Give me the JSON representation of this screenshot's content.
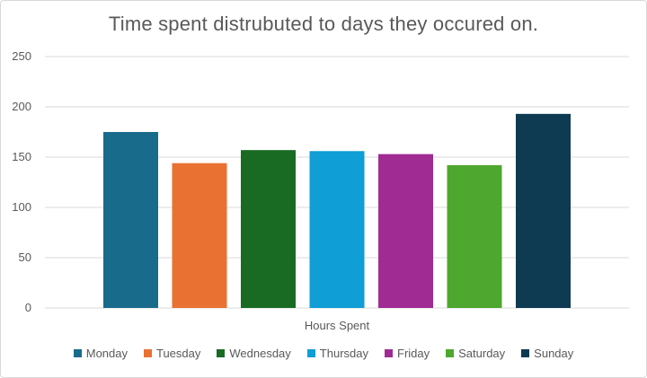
{
  "chart_data": {
    "type": "bar",
    "title": "Time spent distrubuted to days they occured on.",
    "categories": [
      "Hours Spent"
    ],
    "xlabel": "Hours Spent",
    "ylabel": "",
    "ylim": [
      0,
      250
    ],
    "yticks": [
      0,
      50,
      100,
      150,
      200,
      250
    ],
    "grid": true,
    "legend_position": "bottom",
    "series": [
      {
        "name": "Monday",
        "values": [
          175
        ],
        "color": "#196B8B"
      },
      {
        "name": "Tuesday",
        "values": [
          144
        ],
        "color": "#E97132"
      },
      {
        "name": "Wednesday",
        "values": [
          157
        ],
        "color": "#196B24"
      },
      {
        "name": "Thursday",
        "values": [
          156
        ],
        "color": "#0F9ED5"
      },
      {
        "name": "Friday",
        "values": [
          153
        ],
        "color": "#A02B93"
      },
      {
        "name": "Saturday",
        "values": [
          142
        ],
        "color": "#4EA72E"
      },
      {
        "name": "Sunday",
        "values": [
          193
        ],
        "color": "#0E3A52"
      }
    ]
  }
}
